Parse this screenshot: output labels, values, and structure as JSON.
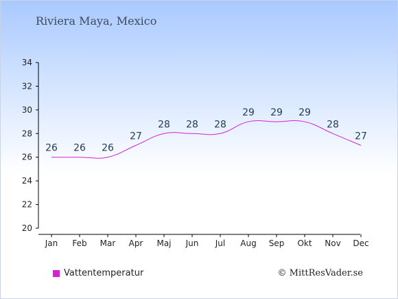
{
  "title": "Riviera Maya, Mexico",
  "credit": "© MittResVader.se",
  "colors": {
    "line": "#d321d3",
    "label": "#233a57"
  },
  "chart_data": {
    "type": "line",
    "categories": [
      "Jan",
      "Feb",
      "Mar",
      "Apr",
      "Maj",
      "Jun",
      "Jul",
      "Aug",
      "Sep",
      "Okt",
      "Nov",
      "Dec"
    ],
    "series": [
      {
        "name": "Vattentemperatur",
        "values": [
          26,
          26,
          26,
          27,
          28,
          28,
          28,
          29,
          29,
          29,
          28,
          27
        ]
      }
    ],
    "ylim": [
      20,
      34
    ],
    "yticks": [
      20,
      22,
      24,
      26,
      28,
      30,
      32,
      34
    ],
    "grid": false,
    "legend": "bottom-left"
  }
}
